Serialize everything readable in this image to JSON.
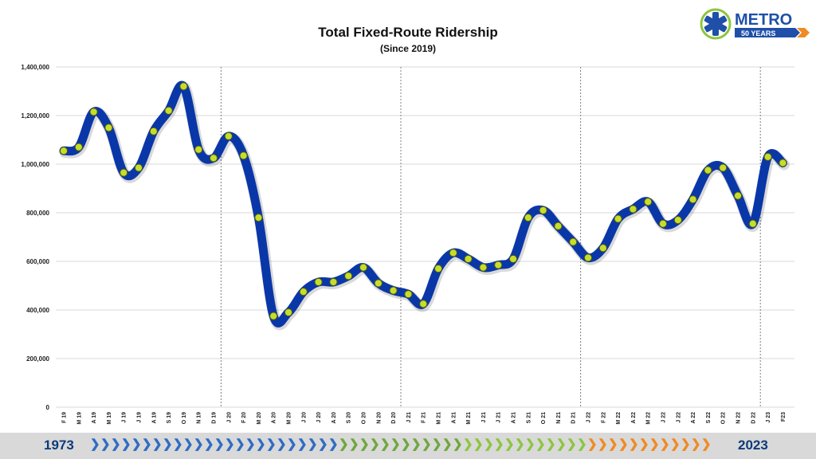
{
  "title": "Total Fixed-Route Ridership",
  "subtitle": "(Since 2019)",
  "logo": {
    "word": "METRO",
    "tagline": "50 YEARS"
  },
  "footer": {
    "start_year": "1973",
    "end_year": "2023"
  },
  "colors": {
    "line": "#0a37a8",
    "marker": "#c8dc2c",
    "marker_stroke": "#4a5a10",
    "grid": "#d9d9d9",
    "divider": "#808080",
    "logo_blue": "#1f4fa8",
    "logo_green": "#8cc63f",
    "logo_orange": "#f08a24"
  },
  "chart_data": {
    "type": "line",
    "title": "Total Fixed-Route Ridership",
    "subtitle": "(Since 2019)",
    "xlabel": "",
    "ylabel": "",
    "ylim": [
      0,
      1400000
    ],
    "yticks": [
      0,
      200000,
      400000,
      600000,
      800000,
      1000000,
      1200000,
      1400000
    ],
    "ytick_labels": [
      "0",
      "200,000",
      "400,000",
      "600,000",
      "800,000",
      "1,000,000",
      "1,200,000",
      "1,400,000"
    ],
    "grid": true,
    "legend": "none",
    "year_dividers_after": [
      "D 19",
      "D 20",
      "D 21",
      "D 22"
    ],
    "categories": [
      "F 19",
      "M 19",
      "A 19",
      "M 19",
      "J 19",
      "J 19",
      "A 19",
      "S 19",
      "O 19",
      "N 19",
      "D 19",
      "J 20",
      "F 20",
      "M 20",
      "A 20",
      "M 20",
      "J 20",
      "J 20",
      "A 20",
      "S 20",
      "O 20",
      "N 20",
      "D 20",
      "J 21",
      "F 21",
      "M 21",
      "A 21",
      "M 21",
      "J 21",
      "J 21",
      "A 21",
      "S 21",
      "O 21",
      "N 21",
      "D 21",
      "J 22",
      "F 22",
      "M 22",
      "A 22",
      "M 22",
      "J 22",
      "J 22",
      "A 22",
      "S 22",
      "O 22",
      "N 22",
      "D 22",
      "J 23",
      "F23"
    ],
    "series": [
      {
        "values": [
          1055000,
          1070000,
          1215000,
          1150000,
          965000,
          985000,
          1135000,
          1220000,
          1320000,
          1060000,
          1025000,
          1115000,
          1035000,
          780000,
          375000,
          390000,
          475000,
          515000,
          515000,
          540000,
          575000,
          510000,
          480000,
          465000,
          425000,
          570000,
          635000,
          610000,
          575000,
          585000,
          610000,
          780000,
          810000,
          745000,
          680000,
          615000,
          655000,
          775000,
          815000,
          845000,
          755000,
          770000,
          855000,
          975000,
          985000,
          870000,
          755000,
          1030000,
          1005000
        ]
      }
    ]
  }
}
